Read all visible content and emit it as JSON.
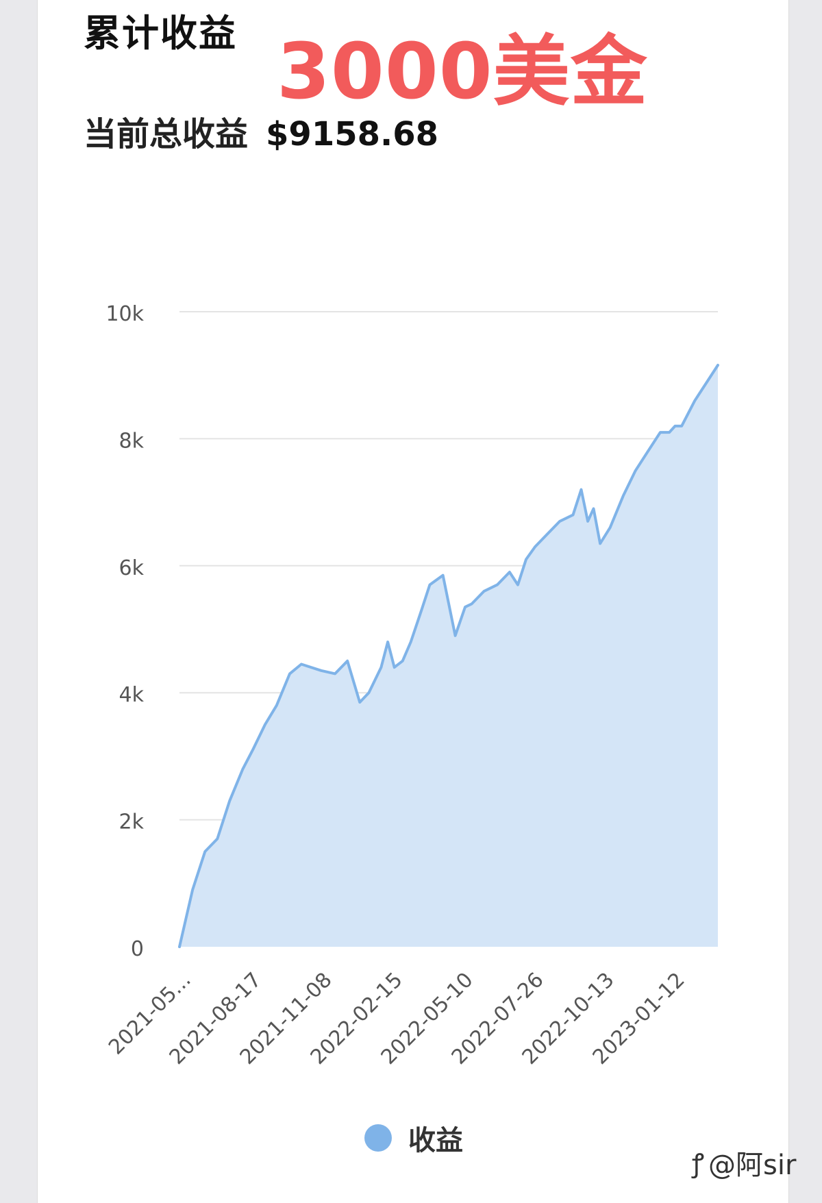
{
  "header": {
    "title": "累计收益",
    "overlay_text": "3000美金",
    "total_label": "当前总收益",
    "total_value": "$9158.68"
  },
  "watermark": {
    "icon": "zhihu-icon",
    "text": "@阿sir"
  },
  "colors": {
    "line": "#7fb3e8",
    "fill": "#d4e5f7",
    "overlay": "#f25b5b",
    "grid": "#e4e4e4"
  },
  "chart_data": {
    "type": "area",
    "title": "",
    "xlabel": "",
    "ylabel": "",
    "ylim": [
      0,
      10000
    ],
    "yticks": [
      0,
      2000,
      4000,
      6000,
      8000,
      10000
    ],
    "ytick_labels": [
      "0",
      "2k",
      "4k",
      "6k",
      "8k",
      "10k"
    ],
    "xtick_labels": [
      "2021-05...",
      "2021-08-17",
      "2021-11-08",
      "2022-02-15",
      "2022-05-10",
      "2022-07-26",
      "2022-10-13",
      "2023-01-12"
    ],
    "grid": true,
    "legend_position": "bottom",
    "series": [
      {
        "name": "收益",
        "x": [
          "2021-05-20",
          "2021-06-05",
          "2021-06-20",
          "2021-07-05",
          "2021-07-20",
          "2021-08-05",
          "2021-08-17",
          "2021-09-01",
          "2021-09-15",
          "2021-10-01",
          "2021-10-15",
          "2021-11-08",
          "2021-11-25",
          "2021-12-10",
          "2021-12-25",
          "2022-01-05",
          "2022-01-20",
          "2022-01-28",
          "2022-02-05",
          "2022-02-15",
          "2022-02-25",
          "2022-03-10",
          "2022-03-20",
          "2022-04-05",
          "2022-04-20",
          "2022-04-28",
          "2022-05-02",
          "2022-05-10",
          "2022-05-25",
          "2022-06-10",
          "2022-06-25",
          "2022-07-05",
          "2022-07-15",
          "2022-07-26",
          "2022-08-10",
          "2022-08-25",
          "2022-09-10",
          "2022-09-20",
          "2022-09-28",
          "2022-10-05",
          "2022-10-13",
          "2022-10-25",
          "2022-11-10",
          "2022-11-25",
          "2022-12-10",
          "2022-12-25",
          "2023-01-05",
          "2023-01-12",
          "2023-01-20",
          "2023-02-05",
          "2023-02-20",
          "2023-03-05"
        ],
        "values": [
          0,
          900,
          1500,
          1700,
          2300,
          2800,
          3100,
          3500,
          3800,
          4300,
          4450,
          4350,
          4300,
          4500,
          3850,
          4000,
          4400,
          4800,
          4400,
          4500,
          4800,
          5300,
          5700,
          5850,
          4900,
          5200,
          5350,
          5400,
          5600,
          5700,
          5900,
          5700,
          6100,
          6300,
          6500,
          6700,
          6800,
          7200,
          6700,
          6900,
          6350,
          6600,
          7100,
          7500,
          7800,
          8100,
          8100,
          8200,
          8200,
          8600,
          8900,
          9158.68
        ]
      }
    ]
  }
}
